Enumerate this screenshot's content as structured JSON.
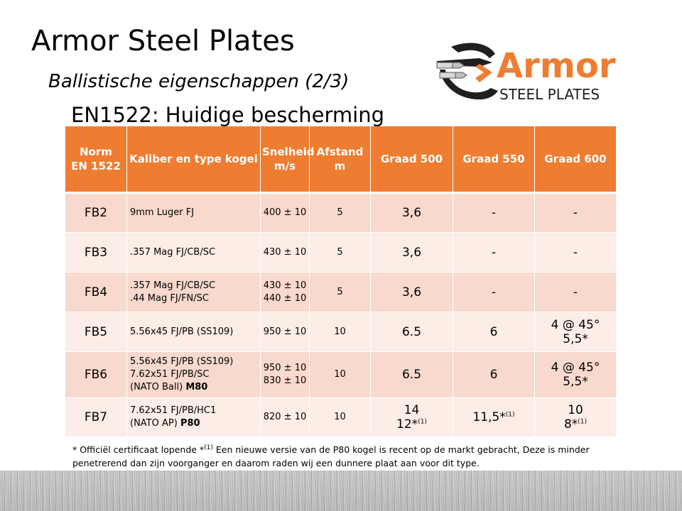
{
  "slide": {
    "title": "Armor Steel Plates",
    "subtitle": "Ballistische eigenschappen (2/3)",
    "heading": "EN1522: Huidige bescherming"
  },
  "logo": {
    "word": "Armor",
    "tagline": "STEEL PLATES",
    "colors": {
      "accent": "#ef7d31",
      "dark": "#1f1f1f"
    }
  },
  "table": {
    "header": {
      "norm": [
        "Norm",
        "EN 1522"
      ],
      "kaliber": "Kaliber en type kogel",
      "snelheid": [
        "Snelheid",
        "m/s"
      ],
      "afstand": [
        "Afstand",
        "m"
      ],
      "g500": "Graad 500",
      "g550": "Graad 550",
      "g600": "Graad 600"
    },
    "rows": [
      {
        "norm": "FB2",
        "kaliber": [
          "9mm Luger FJ"
        ],
        "speed": [
          "400 ± 10"
        ],
        "distance": "5",
        "g500": [
          "3,6"
        ],
        "g550": [
          "-"
        ],
        "g600": [
          "-"
        ]
      },
      {
        "norm": "FB3",
        "kaliber": [
          ".357 Mag FJ/CB/SC"
        ],
        "speed": [
          "430 ± 10"
        ],
        "distance": "5",
        "g500": [
          "3,6"
        ],
        "g550": [
          "-"
        ],
        "g600": [
          "-"
        ]
      },
      {
        "norm": "FB4",
        "kaliber": [
          ".357 Mag FJ/CB/SC",
          ".44 Mag FJ/FN/SC"
        ],
        "speed": [
          "430 ± 10",
          "440 ± 10"
        ],
        "distance": "5",
        "g500": [
          "3,6"
        ],
        "g550": [
          "-"
        ],
        "g600": [
          "-"
        ]
      },
      {
        "norm": "FB5",
        "kaliber": [
          "5.56x45 FJ/PB (SS109)"
        ],
        "speed": [
          "950 ± 10"
        ],
        "distance": "10",
        "g500": [
          "6.5"
        ],
        "g550": [
          "6"
        ],
        "g600": [
          "4 @ 45°",
          "5,5*"
        ]
      },
      {
        "norm": "FB6",
        "kaliber": [
          "5.56x45 FJ/PB (SS109)",
          "7.62x51 FJ/PB/SC",
          "(NATO Ball) "
        ],
        "kaliber_bold": "M80",
        "speed": [
          "950 ± 10",
          "830 ± 10"
        ],
        "distance": "10",
        "g500": [
          "6.5"
        ],
        "g550": [
          "6"
        ],
        "g600": [
          "4 @ 45°",
          "5,5*"
        ]
      },
      {
        "norm": "FB7",
        "kaliber": [
          "7.62x51 FJ/PB/HC1",
          "(NATO AP) "
        ],
        "kaliber_bold": "P80",
        "speed": [
          "820 ± 10"
        ],
        "distance": "10",
        "g500": [
          "14",
          "12*"
        ],
        "g550": [
          "11,5*"
        ],
        "g600": [
          "10",
          "8*"
        ],
        "sup": "(1)"
      }
    ]
  },
  "footnote": {
    "part1": "* Officiël certificaat lopende   *",
    "sup": "(1)",
    "part2": " Een nieuwe versie van de P80 kogel is recent op de markt gebracht, Deze is minder penetrerend dan zijn voorganger en daarom raden wij een dunnere plaat aan voor dit type."
  }
}
